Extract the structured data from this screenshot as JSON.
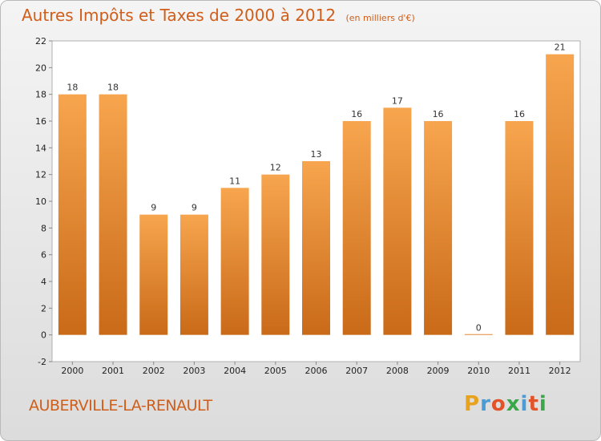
{
  "chart_data": {
    "type": "bar",
    "title": "Autres Impôts et Taxes de 2000 à 2012",
    "subtitle": "(en milliers d'€)",
    "categories": [
      "2000",
      "2001",
      "2002",
      "2003",
      "2004",
      "2005",
      "2006",
      "2007",
      "2008",
      "2009",
      "2010",
      "2011",
      "2012"
    ],
    "values": [
      18,
      18,
      9,
      9,
      11,
      12,
      13,
      16,
      17,
      16,
      0,
      16,
      21
    ],
    "ylim": [
      -2,
      22
    ],
    "yticks": [
      -2,
      0,
      2,
      4,
      6,
      8,
      10,
      12,
      14,
      16,
      18,
      20,
      22
    ],
    "grid": false,
    "bar_color": "#f5a04a",
    "bar_color_dark": "#c96a18"
  },
  "footer": {
    "city": "AUBERVILLE-LA-RENAULT",
    "logo": [
      "P",
      "r",
      "o",
      "x",
      "i",
      "t",
      "i"
    ]
  }
}
